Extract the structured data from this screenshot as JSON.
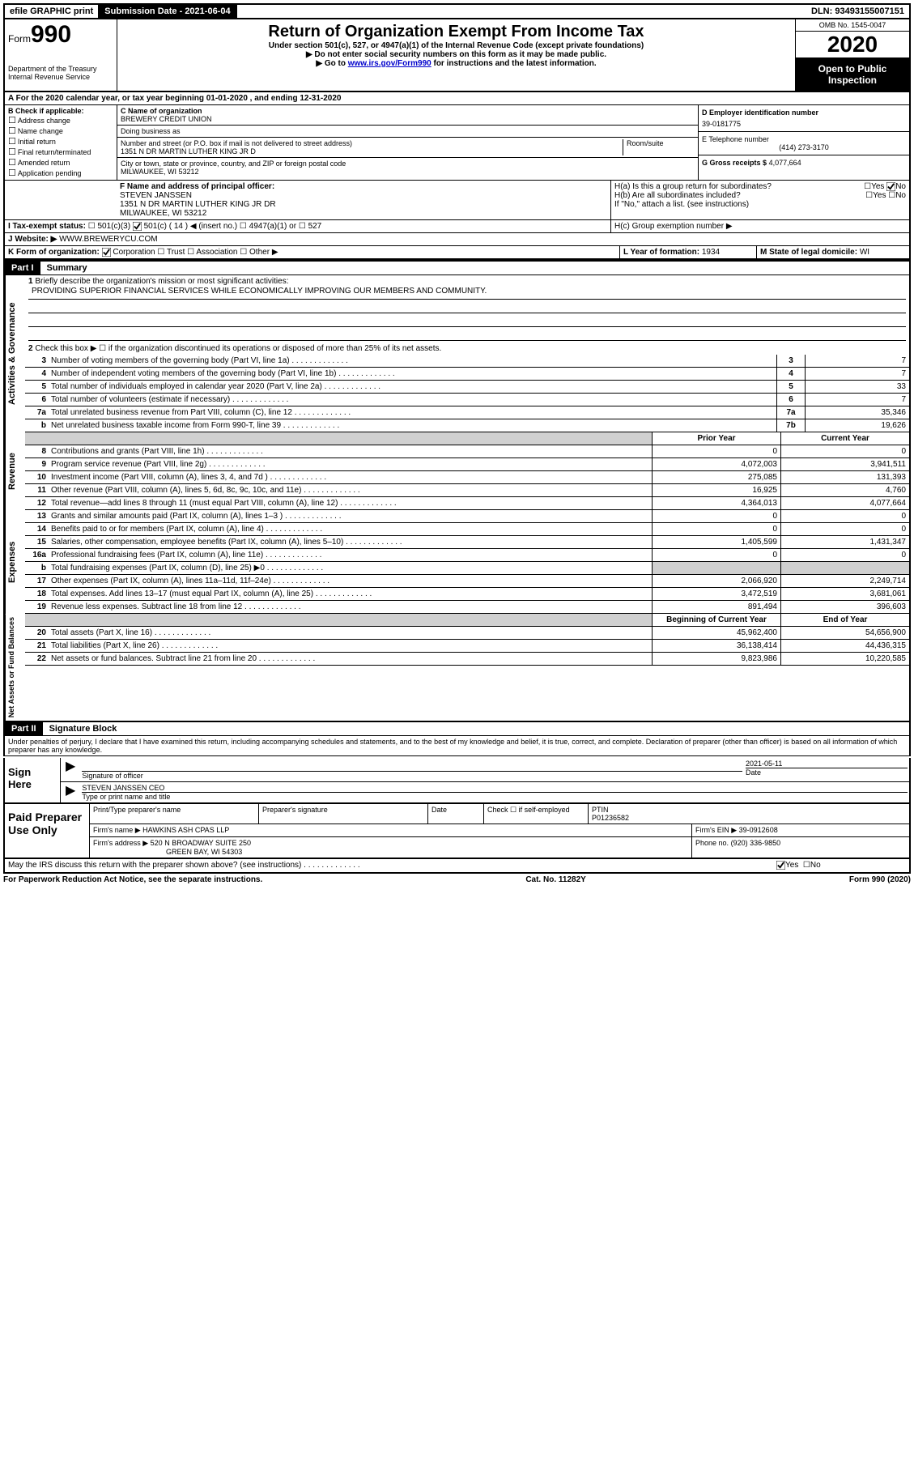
{
  "top": {
    "efile": "efile GRAPHIC print",
    "submission_label": "Submission Date - 2021-06-04",
    "dln": "DLN: 93493155007151"
  },
  "header": {
    "form_prefix": "Form",
    "form_num": "990",
    "dept": "Department of the Treasury\nInternal Revenue Service",
    "main_title": "Return of Organization Exempt From Income Tax",
    "sub_title": "Under section 501(c), 527, or 4947(a)(1) of the Internal Revenue Code (except private foundations)",
    "inst1": "▶ Do not enter social security numbers on this form as it may be made public.",
    "inst2_pre": "▶ Go to ",
    "inst2_link": "www.irs.gov/Form990",
    "inst2_post": " for instructions and the latest information.",
    "omb": "OMB No. 1545-0047",
    "year": "2020",
    "open_public": "Open to Public Inspection"
  },
  "sectionA": {
    "text_pre": "A For the 2020 calendar year, or tax year beginning ",
    "begin": "01-01-2020",
    "mid": " , and ending ",
    "end": "12-31-2020"
  },
  "sectionB": {
    "label": "B Check if applicable:",
    "items": [
      "Address change",
      "Name change",
      "Initial return",
      "Final return/terminated",
      "Amended return",
      "Application pending"
    ]
  },
  "sectionC": {
    "name_label": "C Name of organization",
    "name": "BREWERY CREDIT UNION",
    "dba_label": "Doing business as",
    "dba": "",
    "addr_label": "Number and street (or P.O. box if mail is not delivered to street address)",
    "room_label": "Room/suite",
    "addr": "1351 N DR MARTIN LUTHER KING JR D",
    "city_label": "City or town, state or province, country, and ZIP or foreign postal code",
    "city": "MILWAUKEE, WI  53212"
  },
  "sectionDtoG": {
    "d_label": "D Employer identification number",
    "d_val": "39-0181775",
    "e_label": "E Telephone number",
    "e_val": "(414) 273-3170",
    "g_label": "G Gross receipts $",
    "g_val": "4,077,664"
  },
  "sectionF": {
    "label": "F Name and address of principal officer:",
    "name": "STEVEN JANSSEN",
    "addr": "1351 N DR MARTIN LUTHER KING JR DR",
    "city": "MILWAUKEE, WI  53212"
  },
  "sectionH": {
    "ha_label": "H(a)  Is this a group return for subordinates?",
    "hb_label": "H(b)  Are all subordinates included?",
    "h_no_note": "If \"No,\" attach a list. (see instructions)",
    "hc_label": "H(c)  Group exemption number ▶"
  },
  "sectionI": {
    "label": "I  Tax-exempt status:",
    "opts": [
      "501(c)(3)",
      "501(c) ( 14 ) ◀ (insert no.)",
      "4947(a)(1) or",
      "527"
    ]
  },
  "sectionJ": {
    "label": "J  Website: ▶",
    "val": "WWW.BREWERYCU.COM"
  },
  "sectionK": {
    "label": "K Form of organization:",
    "opts": [
      "Corporation",
      "Trust",
      "Association",
      "Other ▶"
    ]
  },
  "sectionL": {
    "label": "L Year of formation:",
    "val": "1934"
  },
  "sectionM": {
    "label": "M State of legal domicile:",
    "val": "WI"
  },
  "part1": {
    "header": "Part I",
    "title": "Summary",
    "line1_label": "Briefly describe the organization's mission or most significant activities:",
    "mission": "PROVIDING SUPERIOR FINANCIAL SERVICES WHILE ECONOMICALLY IMPROVING OUR MEMBERS AND COMMUNITY.",
    "line2": "Check this box ▶ ☐  if the organization discontinued its operations or disposed of more than 25% of its net assets.",
    "governance_rows": [
      {
        "num": "3",
        "label": "Number of voting members of the governing body (Part VI, line 1a)",
        "box": "3",
        "val": "7"
      },
      {
        "num": "4",
        "label": "Number of independent voting members of the governing body (Part VI, line 1b)",
        "box": "4",
        "val": "7"
      },
      {
        "num": "5",
        "label": "Total number of individuals employed in calendar year 2020 (Part V, line 2a)",
        "box": "5",
        "val": "33"
      },
      {
        "num": "6",
        "label": "Total number of volunteers (estimate if necessary)",
        "box": "6",
        "val": "7"
      },
      {
        "num": "7a",
        "label": "Total unrelated business revenue from Part VIII, column (C), line 12",
        "box": "7a",
        "val": "35,346"
      },
      {
        "num": "b",
        "label": "Net unrelated business taxable income from Form 990-T, line 39",
        "box": "7b",
        "val": "19,626"
      }
    ],
    "col_headers": {
      "prior": "Prior Year",
      "current": "Current Year"
    },
    "revenue_rows": [
      {
        "num": "8",
        "label": "Contributions and grants (Part VIII, line 1h)",
        "prior": "0",
        "current": "0"
      },
      {
        "num": "9",
        "label": "Program service revenue (Part VIII, line 2g)",
        "prior": "4,072,003",
        "current": "3,941,511"
      },
      {
        "num": "10",
        "label": "Investment income (Part VIII, column (A), lines 3, 4, and 7d )",
        "prior": "275,085",
        "current": "131,393"
      },
      {
        "num": "11",
        "label": "Other revenue (Part VIII, column (A), lines 5, 6d, 8c, 9c, 10c, and 11e)",
        "prior": "16,925",
        "current": "4,760"
      },
      {
        "num": "12",
        "label": "Total revenue—add lines 8 through 11 (must equal Part VIII, column (A), line 12)",
        "prior": "4,364,013",
        "current": "4,077,664"
      }
    ],
    "expense_rows": [
      {
        "num": "13",
        "label": "Grants and similar amounts paid (Part IX, column (A), lines 1–3 )",
        "prior": "0",
        "current": "0"
      },
      {
        "num": "14",
        "label": "Benefits paid to or for members (Part IX, column (A), line 4)",
        "prior": "0",
        "current": "0"
      },
      {
        "num": "15",
        "label": "Salaries, other compensation, employee benefits (Part IX, column (A), lines 5–10)",
        "prior": "1,405,599",
        "current": "1,431,347"
      },
      {
        "num": "16a",
        "label": "Professional fundraising fees (Part IX, column (A), line 11e)",
        "prior": "0",
        "current": "0"
      },
      {
        "num": "b",
        "label": "Total fundraising expenses (Part IX, column (D), line 25) ▶0",
        "prior": "",
        "current": "",
        "shaded": true
      },
      {
        "num": "17",
        "label": "Other expenses (Part IX, column (A), lines 11a–11d, 11f–24e)",
        "prior": "2,066,920",
        "current": "2,249,714"
      },
      {
        "num": "18",
        "label": "Total expenses. Add lines 13–17 (must equal Part IX, column (A), line 25)",
        "prior": "3,472,519",
        "current": "3,681,061"
      },
      {
        "num": "19",
        "label": "Revenue less expenses. Subtract line 18 from line 12",
        "prior": "891,494",
        "current": "396,603"
      }
    ],
    "net_headers": {
      "begin": "Beginning of Current Year",
      "end": "End of Year"
    },
    "net_rows": [
      {
        "num": "20",
        "label": "Total assets (Part X, line 16)",
        "prior": "45,962,400",
        "current": "54,656,900"
      },
      {
        "num": "21",
        "label": "Total liabilities (Part X, line 26)",
        "prior": "36,138,414",
        "current": "44,436,315"
      },
      {
        "num": "22",
        "label": "Net assets or fund balances. Subtract line 21 from line 20",
        "prior": "9,823,986",
        "current": "10,220,585"
      }
    ],
    "vert_labels": {
      "gov": "Activities & Governance",
      "rev": "Revenue",
      "exp": "Expenses",
      "net": "Net Assets or Fund Balances"
    }
  },
  "part2": {
    "header": "Part II",
    "title": "Signature Block",
    "perjury": "Under penalties of perjury, I declare that I have examined this return, including accompanying schedules and statements, and to the best of my knowledge and belief, it is true, correct, and complete. Declaration of preparer (other than officer) is based on all information of which preparer has any knowledge.",
    "sign_here": "Sign Here",
    "sig_officer": "Signature of officer",
    "sig_date": "2021-05-11",
    "date_label": "Date",
    "officer_name": "STEVEN JANSSEN  CEO",
    "type_label": "Type or print name and title",
    "paid_prep": "Paid Preparer Use Only",
    "prep_name_label": "Print/Type preparer's name",
    "prep_sig_label": "Preparer's signature",
    "prep_date_label": "Date",
    "check_self": "Check ☐ if self-employed",
    "ptin_label": "PTIN",
    "ptin": "P01236582",
    "firm_name_label": "Firm's name    ▶",
    "firm_name": "HAWKINS ASH CPAS LLP",
    "firm_ein_label": "Firm's EIN ▶",
    "firm_ein": "39-0912608",
    "firm_addr_label": "Firm's address ▶",
    "firm_addr": "520 N BROADWAY SUITE 250",
    "firm_city": "GREEN BAY, WI  54303",
    "phone_label": "Phone no.",
    "phone": "(920) 336-9850",
    "discuss": "May the IRS discuss this return with the preparer shown above? (see instructions)"
  },
  "footer": {
    "paperwork": "For Paperwork Reduction Act Notice, see the separate instructions.",
    "catno": "Cat. No. 11282Y",
    "formref": "Form 990 (2020)"
  },
  "yesno": {
    "yes": "Yes",
    "no": "No"
  }
}
